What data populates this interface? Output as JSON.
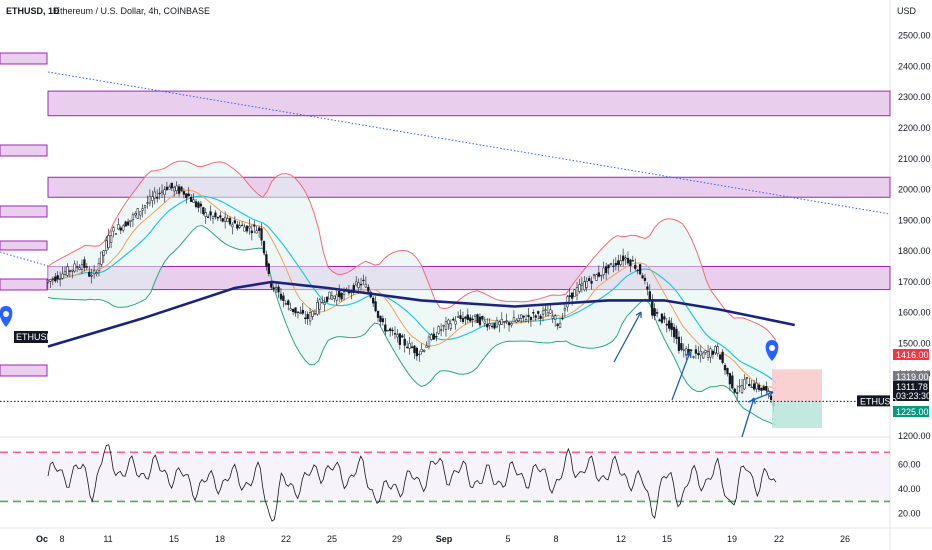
{
  "header": {
    "symbol": "ETHUSD, 1D",
    "description": "Ethereum / U.S. Dollar, 4h, COINBASE",
    "currency": "USD"
  },
  "chart_data": {
    "type": "candlestick",
    "series": [
      {
        "name": "ETHUSD"
      }
    ],
    "y_axis": {
      "min": 1170,
      "max": 2590,
      "ticks": [
        2500,
        2400,
        2300,
        2200,
        2100,
        2000,
        1900,
        1800,
        1700,
        1600,
        1500,
        1400,
        1200
      ],
      "tick_labels": [
        "2500.00",
        "2400.00",
        "2300.00",
        "2200.00",
        "2100.00",
        "2000.00",
        "1900.00",
        "1800.00",
        "1700.00",
        "1600.00",
        "1500.00",
        "1400.00",
        "1200.00"
      ]
    },
    "x_axis": {
      "tick_labels": [
        "Oc",
        "8",
        "11",
        "15",
        "18",
        "22",
        "25",
        "29",
        "Sep",
        "5",
        "8",
        "12",
        "15",
        "19",
        "22",
        "26"
      ]
    },
    "price_tags": [
      {
        "label": "1416.00",
        "value": 1416,
        "color": "#f23645"
      },
      {
        "label": "1319.00",
        "value": 1319,
        "color": "#787b86"
      },
      {
        "label": "1311.78",
        "value": 1311.78,
        "color": "#131722"
      },
      {
        "label": "03:23:30",
        "value": 1290,
        "color": "#131722"
      },
      {
        "label": "1225.00",
        "value": 1225,
        "color": "#089981"
      }
    ],
    "last_price": 1311.78,
    "last_symbol_tag": "ETHUSD",
    "left_symbol_tag": "ETHUSD",
    "resistance_zones": [
      {
        "low": 2240,
        "high": 2320
      },
      {
        "low": 1975,
        "high": 2040
      },
      {
        "low": 1675,
        "high": 1750
      }
    ],
    "position": {
      "entry": 1311.78,
      "stop": 1416,
      "target": 1225,
      "stop_color": "#f8c5c8",
      "target_color": "#b7e4da"
    },
    "close_path": [
      {
        "x": 0,
        "y": 1700
      },
      {
        "x": 2,
        "y": 1730
      },
      {
        "x": 4,
        "y": 1760
      },
      {
        "x": 5,
        "y": 1710
      },
      {
        "x": 7,
        "y": 1860
      },
      {
        "x": 9,
        "y": 1900
      },
      {
        "x": 11,
        "y": 1960
      },
      {
        "x": 13,
        "y": 2010
      },
      {
        "x": 15,
        "y": 1990
      },
      {
        "x": 17,
        "y": 1920
      },
      {
        "x": 19,
        "y": 1900
      },
      {
        "x": 21,
        "y": 1880
      },
      {
        "x": 23,
        "y": 1870
      },
      {
        "x": 24,
        "y": 1700
      },
      {
        "x": 26,
        "y": 1620
      },
      {
        "x": 28,
        "y": 1580
      },
      {
        "x": 30,
        "y": 1650
      },
      {
        "x": 32,
        "y": 1660
      },
      {
        "x": 34,
        "y": 1700
      },
      {
        "x": 35,
        "y": 1650
      },
      {
        "x": 36,
        "y": 1560
      },
      {
        "x": 38,
        "y": 1510
      },
      {
        "x": 40,
        "y": 1470
      },
      {
        "x": 42,
        "y": 1540
      },
      {
        "x": 44,
        "y": 1580
      },
      {
        "x": 46,
        "y": 1580
      },
      {
        "x": 48,
        "y": 1560
      },
      {
        "x": 50,
        "y": 1570
      },
      {
        "x": 52,
        "y": 1590
      },
      {
        "x": 54,
        "y": 1600
      },
      {
        "x": 55,
        "y": 1560
      },
      {
        "x": 56,
        "y": 1650
      },
      {
        "x": 58,
        "y": 1700
      },
      {
        "x": 60,
        "y": 1740
      },
      {
        "x": 62,
        "y": 1780
      },
      {
        "x": 63,
        "y": 1760
      },
      {
        "x": 64,
        "y": 1720
      },
      {
        "x": 65,
        "y": 1600
      },
      {
        "x": 67,
        "y": 1560
      },
      {
        "x": 68,
        "y": 1480
      },
      {
        "x": 70,
        "y": 1460
      },
      {
        "x": 72,
        "y": 1480
      },
      {
        "x": 73,
        "y": 1400
      },
      {
        "x": 74,
        "y": 1340
      },
      {
        "x": 75,
        "y": 1380
      },
      {
        "x": 76,
        "y": 1360
      },
      {
        "x": 77,
        "y": 1350
      },
      {
        "x": 78,
        "y": 1312
      }
    ],
    "ma200_path": [
      {
        "x": 0,
        "y": 1490
      },
      {
        "x": 10,
        "y": 1580
      },
      {
        "x": 20,
        "y": 1680
      },
      {
        "x": 24,
        "y": 1700
      },
      {
        "x": 30,
        "y": 1680
      },
      {
        "x": 40,
        "y": 1640
      },
      {
        "x": 50,
        "y": 1620
      },
      {
        "x": 60,
        "y": 1640
      },
      {
        "x": 66,
        "y": 1640
      },
      {
        "x": 72,
        "y": 1610
      },
      {
        "x": 80,
        "y": 1560
      }
    ],
    "rsi": {
      "ticks": [
        60,
        40,
        20
      ],
      "tick_labels": [
        "60.00",
        "40.00",
        "20.00"
      ],
      "upper_band": 70,
      "lower_band": 30,
      "min": 10,
      "max": 80
    }
  }
}
